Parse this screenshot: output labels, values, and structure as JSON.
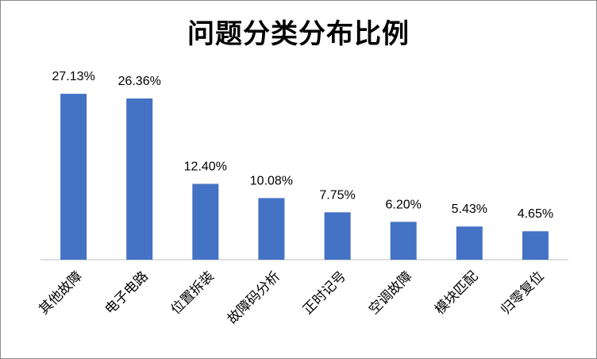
{
  "chart_data": {
    "type": "bar",
    "title": "问题分类分布比例",
    "xlabel": "",
    "ylabel": "",
    "categories": [
      "其他故障",
      "电子电路",
      "位置拆装",
      "故障码分析",
      "正时记号",
      "空调故障",
      "模块匹配",
      "归零复位"
    ],
    "values": [
      27.13,
      26.36,
      12.4,
      10.08,
      7.75,
      6.2,
      5.43,
      4.65
    ],
    "data_labels": [
      "27.13%",
      "26.36%",
      "12.40%",
      "10.08%",
      "7.75%",
      "6.20%",
      "5.43%",
      "4.65%"
    ],
    "ylim": [
      0,
      30
    ],
    "grid": false,
    "legend": "none",
    "bar_color": "#4472C4"
  }
}
